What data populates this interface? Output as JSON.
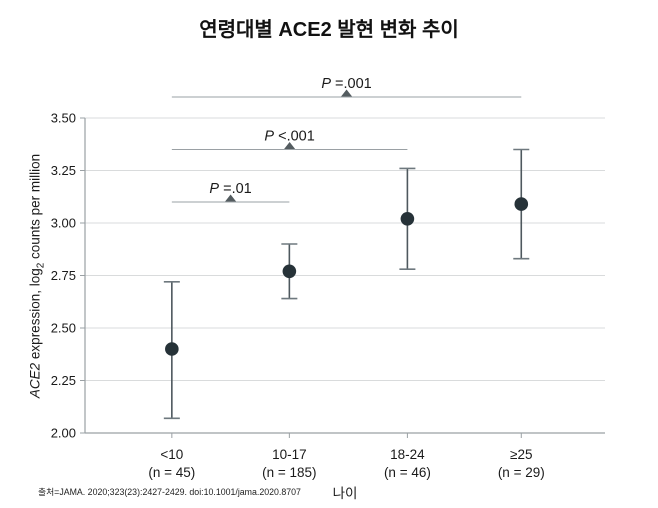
{
  "colors": {
    "point": "#263238",
    "error_bar": "#4e585e",
    "error_cap": "#6e787e",
    "grid": "#d9dbdc",
    "axis": "#9aa0a4",
    "annotation_line": "#9aa0a4",
    "triangle": "#545c60",
    "text": "#1a1a1a"
  },
  "chart_data": {
    "type": "scatter",
    "title": "연령대별 ACE2 발현 변화 추이",
    "xlabel": "나이",
    "ylabel_parts": {
      "italic": "ACE2",
      "mid": " expression, log",
      "sub": "2",
      "end": " counts per million"
    },
    "ylim": [
      2.0,
      3.5
    ],
    "ytick_step": 0.25,
    "grid": true,
    "yticks": [
      "3.50",
      "3.25",
      "3.00",
      "2.75",
      "2.50",
      "2.25",
      "2.00"
    ],
    "categories": [
      {
        "label": "<10",
        "sublabel": "(n = 45)",
        "n": 45
      },
      {
        "label": "10-17",
        "sublabel": "(n = 185)",
        "n": 185
      },
      {
        "label": "18-24",
        "sublabel": "(n = 46)",
        "n": 46
      },
      {
        "label": "≥25",
        "sublabel": "(n = 29)",
        "n": 29
      }
    ],
    "points": [
      {
        "value": 2.4,
        "ci_low": 2.07,
        "ci_high": 2.72
      },
      {
        "value": 2.77,
        "ci_low": 2.64,
        "ci_high": 2.9
      },
      {
        "value": 3.02,
        "ci_low": 2.78,
        "ci_high": 3.26
      },
      {
        "value": 3.09,
        "ci_low": 2.83,
        "ci_high": 3.35
      }
    ],
    "annotations": [
      {
        "label_italic": "P",
        "label_text": " =.01",
        "from": 0,
        "to": 1,
        "row": 0
      },
      {
        "label_italic": "P",
        "label_text": " <.001",
        "from": 0,
        "to": 2,
        "row": 1
      },
      {
        "label_italic": "P",
        "label_text": " =.001",
        "from": 0,
        "to": 3,
        "row": 2
      }
    ]
  },
  "footer": {
    "source": "출처=JAMA. 2020;323(23):2427-2429. doi:10.1001/jama.2020.8707"
  }
}
